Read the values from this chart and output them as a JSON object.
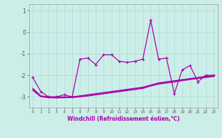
{
  "xlabel": "Windchill (Refroidissement éolien,°C)",
  "background_color": "#cceee8",
  "line_color": "#aa00aa",
  "x_values": [
    0,
    1,
    2,
    3,
    4,
    5,
    6,
    7,
    8,
    9,
    10,
    11,
    12,
    13,
    14,
    15,
    16,
    17,
    18,
    19,
    20,
    21,
    22,
    23
  ],
  "y_main": [
    -2.1,
    -2.75,
    -3.0,
    -3.0,
    -2.9,
    -3.0,
    -1.25,
    -1.2,
    -1.5,
    -1.05,
    -1.05,
    -1.35,
    -1.4,
    -1.35,
    -1.25,
    0.55,
    -1.25,
    -1.2,
    -2.85,
    -1.75,
    -1.55,
    -2.3,
    -2.0,
    -2.0
  ],
  "y_band1": [
    -2.6,
    -2.95,
    -3.0,
    -3.0,
    -3.0,
    -3.0,
    -2.95,
    -2.9,
    -2.85,
    -2.8,
    -2.75,
    -2.7,
    -2.65,
    -2.6,
    -2.55,
    -2.45,
    -2.35,
    -2.3,
    -2.25,
    -2.2,
    -2.15,
    -2.1,
    -2.05,
    -2.0
  ],
  "y_band2": [
    -2.65,
    -2.97,
    -3.02,
    -3.03,
    -3.02,
    -3.01,
    -2.98,
    -2.93,
    -2.88,
    -2.83,
    -2.78,
    -2.73,
    -2.68,
    -2.63,
    -2.58,
    -2.47,
    -2.38,
    -2.33,
    -2.28,
    -2.22,
    -2.17,
    -2.12,
    -2.08,
    -2.03
  ],
  "y_band3": [
    -2.7,
    -2.99,
    -3.04,
    -3.05,
    -3.04,
    -3.03,
    -3.0,
    -2.96,
    -2.91,
    -2.86,
    -2.81,
    -2.76,
    -2.71,
    -2.66,
    -2.61,
    -2.5,
    -2.41,
    -2.36,
    -2.31,
    -2.25,
    -2.2,
    -2.15,
    -2.1,
    -2.06
  ],
  "yticks": [
    1,
    0,
    -1,
    -2,
    -3
  ],
  "ylim": [
    -3.5,
    1.3
  ],
  "xlim": [
    -0.5,
    23.5
  ]
}
